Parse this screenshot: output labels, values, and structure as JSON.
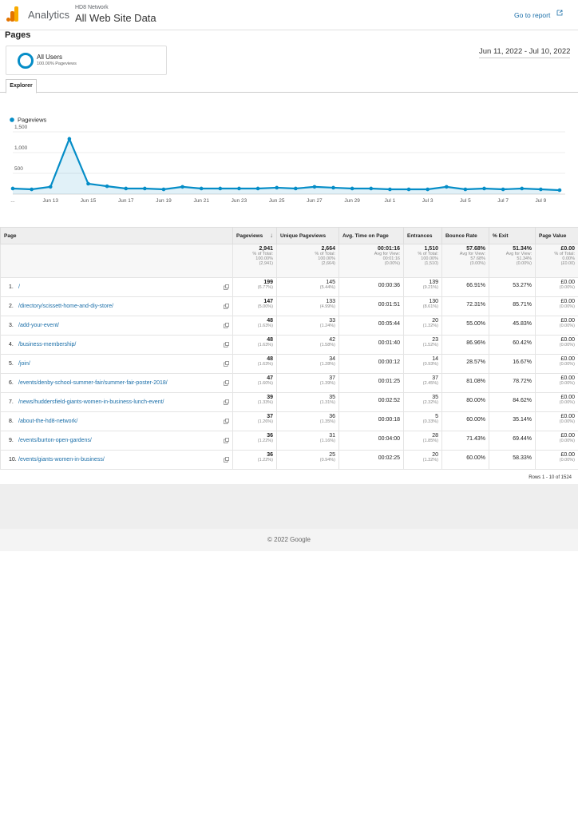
{
  "header": {
    "product": "Analytics",
    "account": "HD8 Network",
    "view": "All Web Site Data",
    "go_to_report": "Go to report"
  },
  "page_title": "Pages",
  "segment": {
    "name": "All Users",
    "detail": "100.00% Pageviews"
  },
  "date_range": "Jun 11, 2022 - Jul 10, 2022",
  "tab": "Explorer",
  "chart_data": {
    "type": "line",
    "categories": [
      "...",
      null,
      "Jun 13",
      null,
      "Jun 15",
      null,
      "Jun 17",
      null,
      "Jun 19",
      null,
      "Jun 21",
      null,
      "Jun 23",
      null,
      "Jun 25",
      null,
      "Jun 27",
      null,
      "Jun 29",
      null,
      "Jul 1",
      null,
      "Jul 3",
      null,
      "Jul 5",
      null,
      "Jul 7",
      null,
      "Jul 9",
      null
    ],
    "series": [
      {
        "name": "Pageviews",
        "color": "#058dc7",
        "values": [
          135,
          115,
          175,
          1330,
          250,
          190,
          135,
          135,
          115,
          175,
          135,
          135,
          135,
          135,
          155,
          135,
          175,
          155,
          135,
          135,
          115,
          115,
          115,
          175,
          115,
          135,
          115,
          135,
          115,
          95
        ]
      }
    ],
    "ylim": [
      0,
      1600
    ],
    "yticks": [
      500,
      {
        "value": 1000,
        "label": "1,000"
      },
      {
        "value": 1500,
        "label": "1,500"
      }
    ],
    "grid": true
  },
  "table": {
    "columns": [
      "Page",
      "Pageviews",
      "Unique Pageviews",
      "Avg. Time on Page",
      "Entrances",
      "Bounce Rate",
      "% Exit",
      "Page Value"
    ],
    "totals": [
      [
        "2,941",
        "% of Total:",
        "100.00%",
        "(2,941)"
      ],
      [
        "2,664",
        "% of Total:",
        "100.00%",
        "(2,664)"
      ],
      [
        "00:01:16",
        "Avg for View:",
        "00:01:16",
        "(0.00%)"
      ],
      [
        "1,510",
        "% of Total:",
        "100.00%",
        "(1,510)"
      ],
      [
        "57.68%",
        "Avg for View:",
        "57.68%",
        "(0.00%)"
      ],
      [
        "51.34%",
        "Avg for View:",
        "51.34%",
        "(0.00%)"
      ],
      [
        "£0.00",
        "% of Total:",
        "0.00%",
        "(£0.00)"
      ]
    ],
    "rows": [
      [
        "1.",
        "/",
        "199",
        "(6.77%)",
        "145",
        "(5.44%)",
        "00:00:36",
        "139",
        "(9.21%)",
        "66.91%",
        "53.27%",
        "£0.00",
        "(0.00%)"
      ],
      [
        "2.",
        "/directory/scissett-home-and-diy-store/",
        "147",
        "(5.00%)",
        "133",
        "(4.99%)",
        "00:01:51",
        "130",
        "(8.61%)",
        "72.31%",
        "85.71%",
        "£0.00",
        "(0.00%)"
      ],
      [
        "3.",
        "/add-your-event/",
        "48",
        "(1.63%)",
        "33",
        "(1.24%)",
        "00:05:44",
        "20",
        "(1.32%)",
        "55.00%",
        "45.83%",
        "£0.00",
        "(0.00%)"
      ],
      [
        "4.",
        "/business-membership/",
        "48",
        "(1.63%)",
        "42",
        "(1.58%)",
        "00:01:40",
        "23",
        "(1.52%)",
        "86.96%",
        "60.42%",
        "£0.00",
        "(0.00%)"
      ],
      [
        "5.",
        "/join/",
        "48",
        "(1.63%)",
        "34",
        "(1.28%)",
        "00:00:12",
        "14",
        "(0.93%)",
        "28.57%",
        "16.67%",
        "£0.00",
        "(0.00%)"
      ],
      [
        "6.",
        "/events/denby-school-summer-fair/summer-fair-poster-2018/",
        "47",
        "(1.60%)",
        "37",
        "(1.39%)",
        "00:01:25",
        "37",
        "(2.45%)",
        "81.08%",
        "78.72%",
        "£0.00",
        "(0.00%)"
      ],
      [
        "7.",
        "/news/huddersfield-giants-women-in-business-lunch-event/",
        "39",
        "(1.33%)",
        "35",
        "(1.31%)",
        "00:02:52",
        "35",
        "(2.32%)",
        "80.00%",
        "84.62%",
        "£0.00",
        "(0.00%)"
      ],
      [
        "8.",
        "/about-the-hd8-network/",
        "37",
        "(1.26%)",
        "36",
        "(1.35%)",
        "00:00:18",
        "5",
        "(0.33%)",
        "60.00%",
        "35.14%",
        "£0.00",
        "(0.00%)"
      ],
      [
        "9.",
        "/events/burton-open-gardens/",
        "36",
        "(1.22%)",
        "31",
        "(1.16%)",
        "00:04:00",
        "28",
        "(1.85%)",
        "71.43%",
        "69.44%",
        "£0.00",
        "(0.00%)"
      ],
      [
        "10.",
        "/events/giants-women-in-business/",
        "36",
        "(1.22%)",
        "25",
        "(0.94%)",
        "00:02:25",
        "20",
        "(1.32%)",
        "60.00%",
        "58.33%",
        "£0.00",
        "(0.00%)"
      ]
    ],
    "pagination": "Rows 1 - 10 of 1524"
  },
  "footer": "© 2022 Google"
}
